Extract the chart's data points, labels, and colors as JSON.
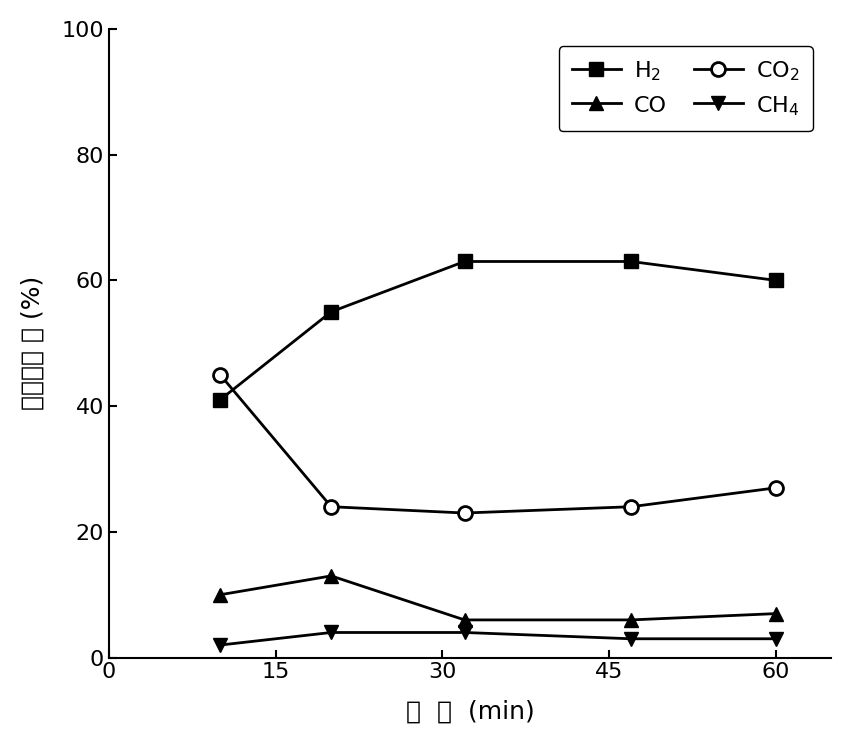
{
  "x": [
    10,
    20,
    32,
    47,
    60
  ],
  "H2": [
    41,
    55,
    63,
    63,
    60
  ],
  "CO2": [
    45,
    24,
    23,
    24,
    27
  ],
  "CO": [
    10,
    13,
    6,
    6,
    7
  ],
  "CH4": [
    2,
    4,
    4,
    3,
    3
  ],
  "xlabel": "时  间  (min)",
  "ylabel": "出口气组 成 (%)",
  "xlim": [
    0,
    65
  ],
  "ylim": [
    0,
    100
  ],
  "xticks": [
    0,
    15,
    30,
    45,
    60
  ],
  "yticks": [
    0,
    20,
    40,
    60,
    80,
    100
  ],
  "line_color": "#000000",
  "bg_color": "#ffffff",
  "figsize": [
    8.52,
    7.44
  ],
  "dpi": 100,
  "tick_labelsize": 16,
  "axis_labelsize": 18,
  "legend_fontsize": 16
}
